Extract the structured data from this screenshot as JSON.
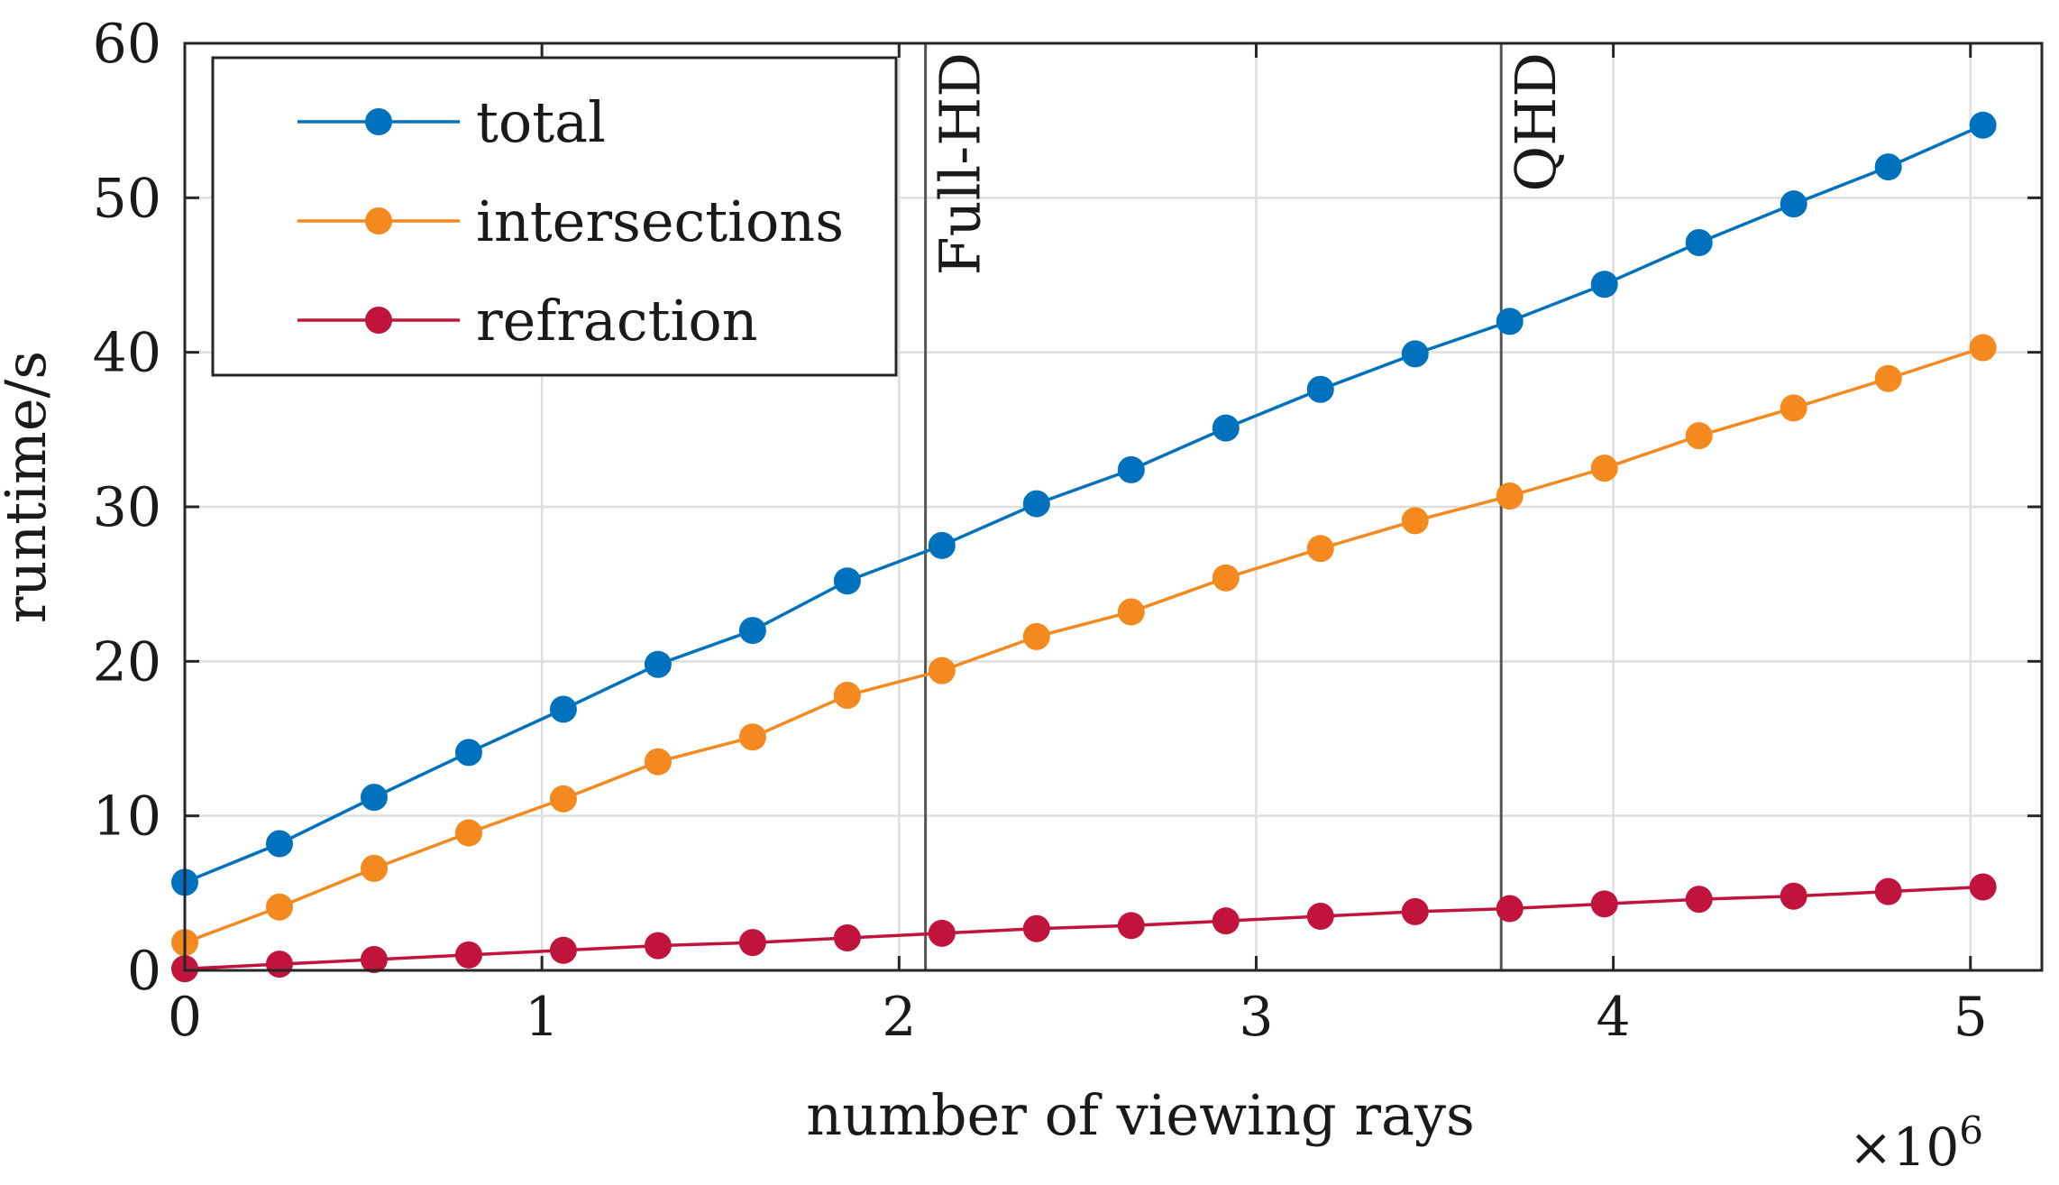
{
  "chart_data": {
    "type": "line",
    "title": "",
    "xlabel": "number of viewing rays",
    "ylabel": "runtime/s",
    "x_exponent_label": "×10",
    "x_exponent_power": "6",
    "xlim": [
      0,
      5.2
    ],
    "ylim": [
      0,
      60
    ],
    "xticks": [
      0,
      1,
      2,
      3,
      4,
      5
    ],
    "xtick_labels": [
      "0",
      "1",
      "2",
      "3",
      "4",
      "5"
    ],
    "yticks": [
      0,
      10,
      20,
      30,
      40,
      50,
      60
    ],
    "ytick_labels": [
      "0",
      "10",
      "20",
      "30",
      "40",
      "50",
      "60"
    ],
    "grid": true,
    "legend_position": "top-left",
    "x": [
      0,
      0.265,
      0.53,
      0.795,
      1.06,
      1.325,
      1.59,
      1.855,
      2.12,
      2.385,
      2.65,
      2.915,
      3.18,
      3.445,
      3.71,
      3.975,
      4.24,
      4.505,
      4.77,
      5.035
    ],
    "series": [
      {
        "name": "total",
        "color": "#0072BD",
        "values": [
          5.7,
          8.2,
          11.2,
          14.1,
          16.9,
          19.8,
          22.0,
          25.2,
          27.5,
          30.2,
          32.4,
          35.1,
          37.6,
          39.9,
          42.0,
          44.4,
          47.1,
          49.6,
          52.0,
          54.7
        ]
      },
      {
        "name": "intersections",
        "color": "#F48A1F",
        "values": [
          1.8,
          4.1,
          6.6,
          8.9,
          11.1,
          13.5,
          15.1,
          17.8,
          19.4,
          21.6,
          23.2,
          25.4,
          27.3,
          29.1,
          30.7,
          32.5,
          34.6,
          36.4,
          38.3,
          40.3
        ]
      },
      {
        "name": "refraction",
        "color": "#C0143C",
        "values": [
          0.1,
          0.4,
          0.7,
          1.0,
          1.3,
          1.6,
          1.8,
          2.1,
          2.4,
          2.7,
          2.9,
          3.2,
          3.5,
          3.8,
          4.0,
          4.3,
          4.6,
          4.8,
          5.1,
          5.4
        ]
      }
    ],
    "vlines": [
      {
        "x": 2.074,
        "label": "Full-HD"
      },
      {
        "x": 3.686,
        "label": "QHD"
      }
    ]
  }
}
